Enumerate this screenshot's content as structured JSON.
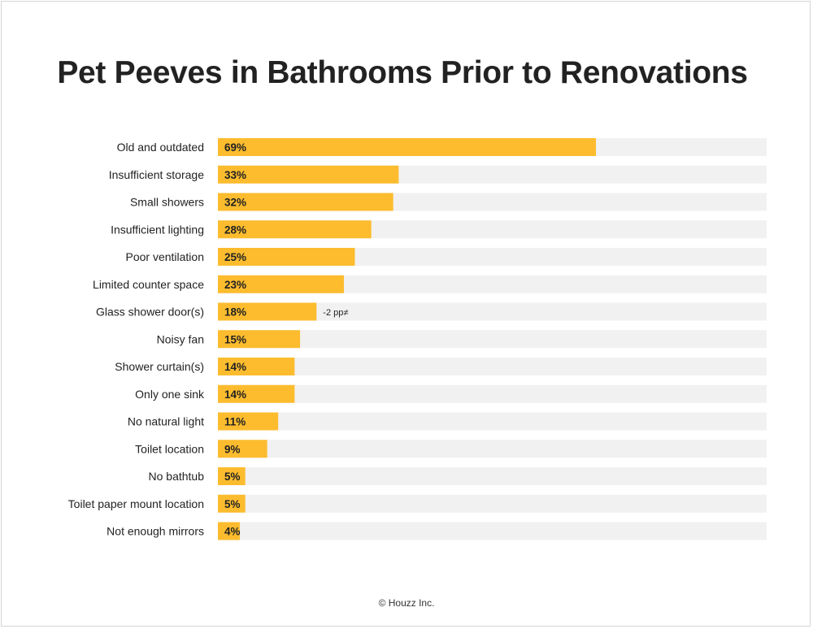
{
  "title": "Pet Peeves in Bathrooms Prior to Renovations",
  "footer": "© Houzz Inc.",
  "colors": {
    "bar": "#fcbc2e",
    "track": "#f1f1f1",
    "text": "#222222"
  },
  "chart_data": {
    "type": "bar",
    "orientation": "horizontal",
    "title": "Pet Peeves in Bathrooms Prior to Renovations",
    "categories": [
      "Old and outdated",
      "Insufficient storage",
      "Small showers",
      "Insufficient lighting",
      "Poor ventilation",
      "Limited counter space",
      "Glass shower door(s)",
      "Noisy fan",
      "Shower curtain(s)",
      "Only one sink",
      "No natural light",
      "Toilet location",
      "No bathtub",
      "Toilet paper mount location",
      "Not enough mirrors"
    ],
    "values": [
      69,
      33,
      32,
      28,
      25,
      23,
      18,
      15,
      14,
      14,
      11,
      9,
      5,
      5,
      4
    ],
    "value_labels": [
      "69%",
      "33%",
      "32%",
      "28%",
      "25%",
      "23%",
      "18%",
      "15%",
      "14%",
      "14%",
      "11%",
      "9%",
      "5%",
      "5%",
      "4%"
    ],
    "annotations": [
      {
        "category": "Glass shower door(s)",
        "text": "-2 pp≠"
      }
    ],
    "xlim": [
      0,
      100
    ],
    "grid": false,
    "legend": "none"
  }
}
